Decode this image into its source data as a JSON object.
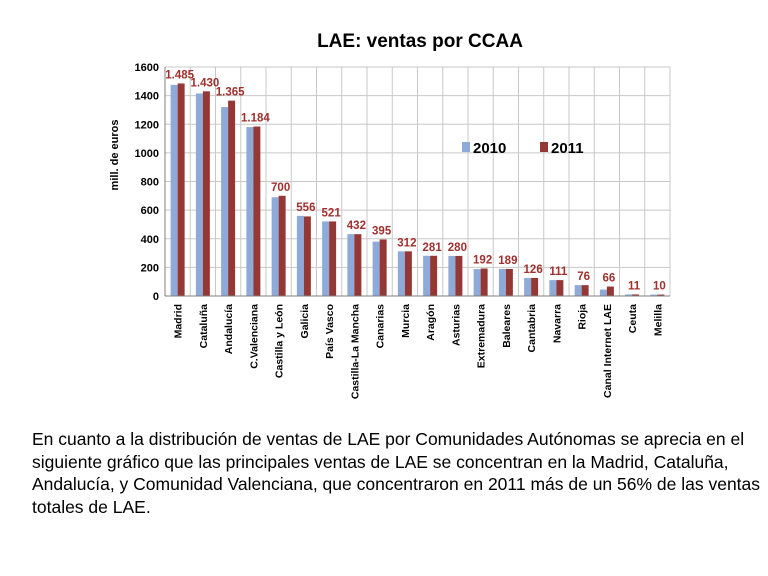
{
  "chart_data": {
    "type": "bar",
    "title": "LAE: ventas por CCAA",
    "xlabel": "",
    "ylabel": "mill. de euros",
    "ylim": [
      0,
      1600
    ],
    "yticks": [
      0,
      200,
      400,
      600,
      800,
      1000,
      1200,
      1400,
      1600
    ],
    "grid": true,
    "legend_position": "right",
    "categories": [
      "Madrid",
      "Cataluña",
      "Andalucía",
      "C.Valenciana",
      "Castilla y León",
      "Galicia",
      "País Vasco",
      "Castilla-La Mancha",
      "Canarias",
      "Murcia",
      "Aragón",
      "Asturias",
      "Extremadura",
      "Baleares",
      "Cantabria",
      "Navarra",
      "Rioja",
      "Canal Internet LAE",
      "Ceuta",
      "Melilla"
    ],
    "series": [
      {
        "name": "2010",
        "color": "#8eaad8",
        "values": [
          1475,
          1415,
          1320,
          1180,
          690,
          560,
          521,
          432,
          380,
          312,
          281,
          280,
          188,
          189,
          126,
          111,
          76,
          45,
          11,
          10
        ]
      },
      {
        "name": "2011",
        "color": "#953735",
        "values": [
          1485,
          1430,
          1365,
          1184,
          700,
          556,
          521,
          432,
          395,
          312,
          281,
          280,
          192,
          189,
          126,
          111,
          76,
          66,
          11,
          10
        ]
      }
    ],
    "data_labels": [
      "1.485",
      "1.430",
      "1.365",
      "1.184",
      "700",
      "556",
      "521",
      "432",
      "395",
      "312",
      "281",
      "280",
      "192",
      "189",
      "126",
      "111",
      "76",
      "66",
      "11",
      "10"
    ]
  },
  "caption": "En cuanto a la distribución de ventas de LAE por Comunidades Autónomas se aprecia en el siguiente gráfico que las principales ventas de LAE se concentran en la Madrid, Cataluña, Andalucía, y Comunidad Valenciana, que concentraron en 2011 más de un 56% de las ventas totales de LAE."
}
